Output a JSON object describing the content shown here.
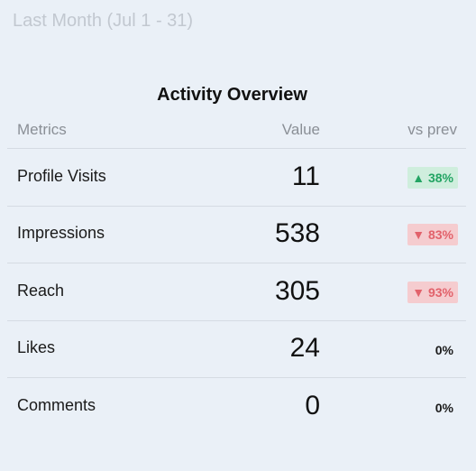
{
  "period_label": "Last Month (Jul 1 - 31)",
  "title": "Activity Overview",
  "columns": {
    "metric": "Metrics",
    "value": "Value",
    "change": "vs prev"
  },
  "rows": [
    {
      "metric": "Profile Visits",
      "value": "11",
      "change": "▲ 38%",
      "trend": "up"
    },
    {
      "metric": "Impressions",
      "value": "538",
      "change": "▼ 83%",
      "trend": "down"
    },
    {
      "metric": "Reach",
      "value": "305",
      "change": "▼ 93%",
      "trend": "down"
    },
    {
      "metric": "Likes",
      "value": "24",
      "change": "0%",
      "trend": "flat"
    },
    {
      "metric": "Comments",
      "value": "0",
      "change": "0%",
      "trend": "flat"
    }
  ],
  "colors": {
    "up": "#23a463",
    "down": "#e2626b",
    "background": "#eaf0f7"
  }
}
